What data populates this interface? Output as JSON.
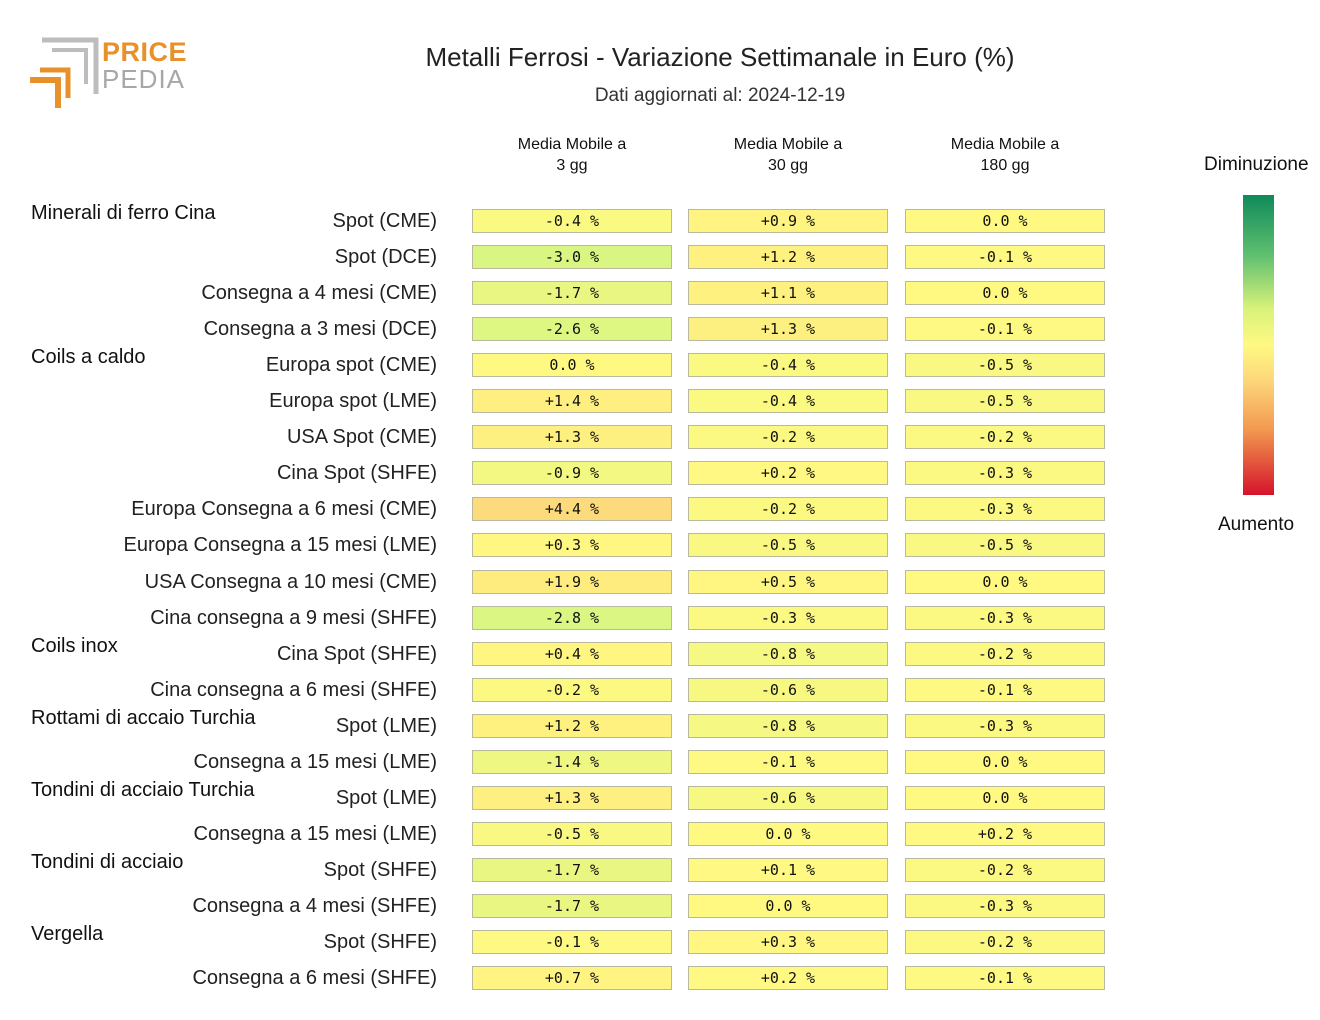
{
  "logo": {
    "line1": "PRICE",
    "line2": "PEDIA"
  },
  "title": "Metalli Ferrosi - Variazione Settimanale in Euro (%)",
  "subtitle": "Dati aggiornati al: 2024-12-19",
  "legend": {
    "top_label": "Diminuzione",
    "bottom_label": "Aumento"
  },
  "colors": {
    "decrease": "#108a5a",
    "neutral": "#fff982",
    "increase": "#d5132b"
  },
  "chart_data": {
    "type": "heatmap",
    "title": "Metalli Ferrosi - Variazione Settimanale in Euro (%)",
    "columns": [
      "Media Mobile a\n3 gg",
      "Media Mobile a\n30 gg",
      "Media Mobile a\n180 gg"
    ],
    "groups": [
      {
        "name": "Minerali di ferro Cina",
        "rows": [
          {
            "label": "Spot (CME)",
            "values": [
              -0.4,
              0.9,
              0.0
            ],
            "texts": [
              "-0.4 %",
              "+0.9 %",
              "0.0 %"
            ]
          },
          {
            "label": "Spot (DCE)",
            "values": [
              -3.0,
              1.2,
              -0.1
            ],
            "texts": [
              "-3.0 %",
              "+1.2 %",
              "-0.1 %"
            ]
          },
          {
            "label": "Consegna a 4 mesi (CME)",
            "values": [
              -1.7,
              1.1,
              0.0
            ],
            "texts": [
              "-1.7 %",
              "+1.1 %",
              "0.0 %"
            ]
          },
          {
            "label": "Consegna a 3 mesi (DCE)",
            "values": [
              -2.6,
              1.3,
              -0.1
            ],
            "texts": [
              "-2.6 %",
              "+1.3 %",
              "-0.1 %"
            ]
          }
        ]
      },
      {
        "name": "Coils a caldo",
        "rows": [
          {
            "label": "Europa spot (CME)",
            "values": [
              0.0,
              -0.4,
              -0.5
            ],
            "texts": [
              "0.0 %",
              "-0.4 %",
              "-0.5 %"
            ]
          },
          {
            "label": "Europa spot (LME)",
            "values": [
              1.4,
              -0.4,
              -0.5
            ],
            "texts": [
              "+1.4 %",
              "-0.4 %",
              "-0.5 %"
            ]
          },
          {
            "label": "USA Spot (CME)",
            "values": [
              1.3,
              -0.2,
              -0.2
            ],
            "texts": [
              "+1.3 %",
              "-0.2 %",
              "-0.2 %"
            ]
          },
          {
            "label": "Cina Spot (SHFE)",
            "values": [
              -0.9,
              0.2,
              -0.3
            ],
            "texts": [
              "-0.9 %",
              "+0.2 %",
              "-0.3 %"
            ]
          },
          {
            "label": "Europa Consegna a 6 mesi (CME)",
            "values": [
              4.4,
              -0.2,
              -0.3
            ],
            "texts": [
              "+4.4 %",
              "-0.2 %",
              "-0.3 %"
            ]
          },
          {
            "label": "Europa Consegna a 15 mesi (LME)",
            "values": [
              0.3,
              -0.5,
              -0.5
            ],
            "texts": [
              "+0.3 %",
              "-0.5 %",
              "-0.5 %"
            ]
          },
          {
            "label": "USA Consegna a 10 mesi (CME)",
            "values": [
              1.9,
              0.5,
              0.0
            ],
            "texts": [
              "+1.9 %",
              "+0.5 %",
              "0.0 %"
            ]
          },
          {
            "label": "Cina consegna a 9 mesi (SHFE)",
            "values": [
              -2.8,
              -0.3,
              -0.3
            ],
            "texts": [
              "-2.8 %",
              "-0.3 %",
              "-0.3 %"
            ]
          }
        ]
      },
      {
        "name": "Coils inox",
        "rows": [
          {
            "label": "Cina Spot (SHFE)",
            "values": [
              0.4,
              -0.8,
              -0.2
            ],
            "texts": [
              "+0.4 %",
              "-0.8 %",
              "-0.2 %"
            ]
          },
          {
            "label": "Cina consegna a 6 mesi (SHFE)",
            "values": [
              -0.2,
              -0.6,
              -0.1
            ],
            "texts": [
              "-0.2 %",
              "-0.6 %",
              "-0.1 %"
            ]
          }
        ]
      },
      {
        "name": "Rottami di accaio Turchia",
        "rows": [
          {
            "label": "Spot (LME)",
            "values": [
              1.2,
              -0.8,
              -0.3
            ],
            "texts": [
              "+1.2 %",
              "-0.8 %",
              "-0.3 %"
            ]
          },
          {
            "label": "Consegna a 15 mesi (LME)",
            "values": [
              -1.4,
              -0.1,
              0.0
            ],
            "texts": [
              "-1.4 %",
              "-0.1 %",
              "0.0 %"
            ]
          }
        ]
      },
      {
        "name": "Tondini di acciaio Turchia",
        "rows": [
          {
            "label": "Spot (LME)",
            "values": [
              1.3,
              -0.6,
              0.0
            ],
            "texts": [
              "+1.3 %",
              "-0.6 %",
              "0.0 %"
            ]
          },
          {
            "label": "Consegna a 15 mesi (LME)",
            "values": [
              -0.5,
              0.0,
              0.2
            ],
            "texts": [
              "-0.5 %",
              "0.0 %",
              "+0.2 %"
            ]
          }
        ]
      },
      {
        "name": "Tondini di acciaio",
        "rows": [
          {
            "label": "Spot (SHFE)",
            "values": [
              -1.7,
              0.1,
              -0.2
            ],
            "texts": [
              "-1.7 %",
              "+0.1 %",
              "-0.2 %"
            ]
          },
          {
            "label": "Consegna a 4 mesi (SHFE)",
            "values": [
              -1.7,
              0.0,
              -0.3
            ],
            "texts": [
              "-1.7 %",
              "0.0 %",
              "-0.3 %"
            ]
          }
        ]
      },
      {
        "name": "Vergella",
        "rows": [
          {
            "label": "Spot (SHFE)",
            "values": [
              -0.1,
              0.3,
              -0.2
            ],
            "texts": [
              "-0.1 %",
              "+0.3 %",
              "-0.2 %"
            ]
          },
          {
            "label": "Consegna a 6 mesi (SHFE)",
            "values": [
              0.7,
              0.2,
              -0.1
            ],
            "texts": [
              "+0.7 %",
              "+0.2 %",
              "-0.1 %"
            ]
          }
        ]
      }
    ]
  }
}
